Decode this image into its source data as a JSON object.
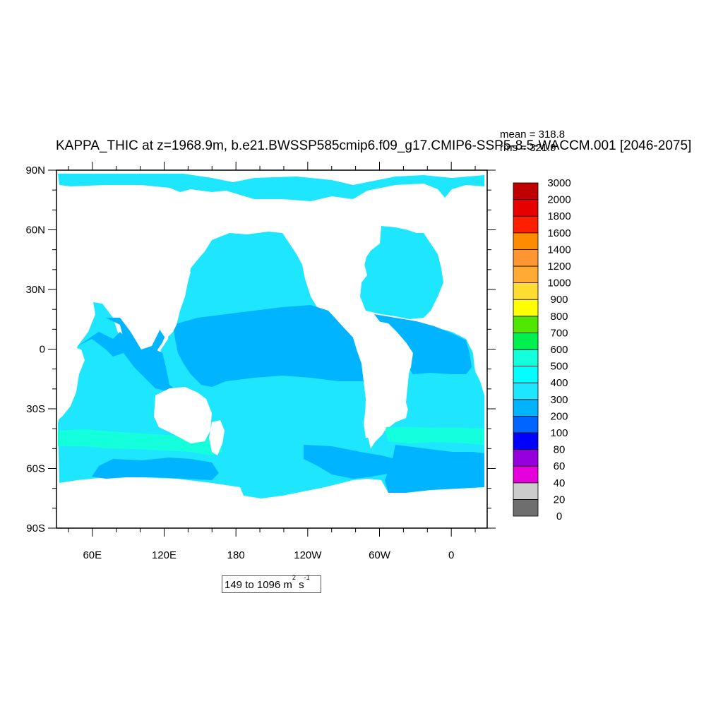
{
  "title": "KAPPA_THIC at z=1968.9m, b.e21.BWSSP585cmip6.f09_g17.CMIP6-SSP5-8.5-WACCM.001 [2046-2075]",
  "stats": {
    "mean": "mean = 318.8",
    "rms": "rms = 321.9"
  },
  "range_label": {
    "text": "149 to 1096 m",
    "unit_exp1": "2",
    "unit_mid": " s",
    "unit_exp2": "-1"
  },
  "colors": {
    "land": "#ffffff",
    "ocean_main": "#1ee6ff",
    "band_200_300": "#00b4ff",
    "band_400_500": "#14ffdc"
  },
  "chart_data": {
    "type": "heatmap",
    "variable": "KAPPA_THIC",
    "x_ticks": [
      "60E",
      "120E",
      "180",
      "120W",
      "60W",
      "0"
    ],
    "y_ticks": [
      "90N",
      "60N",
      "30N",
      "0",
      "30S",
      "60S",
      "90S"
    ],
    "xlim_deg_east": [
      30,
      390
    ],
    "ylim_deg_north": [
      -90,
      90
    ],
    "colorbar": {
      "levels": [
        "0",
        "20",
        "40",
        "60",
        "80",
        "100",
        "200",
        "300",
        "400",
        "500",
        "600",
        "700",
        "800",
        "900",
        "1000",
        "1200",
        "1400",
        "1600",
        "1800",
        "2000",
        "3000"
      ],
      "colors": [
        "#6e6e6e",
        "#cccccc",
        "#e600dc",
        "#9600dc",
        "#0000ff",
        "#0064ff",
        "#00b4ff",
        "#1ee6ff",
        "#00ffff",
        "#14ffdc",
        "#00f050",
        "#50e600",
        "#ffff00",
        "#ffdc32",
        "#ffaa32",
        "#ff9632",
        "#ff8c00",
        "#ff1e00",
        "#e60000",
        "#be0000"
      ]
    }
  }
}
